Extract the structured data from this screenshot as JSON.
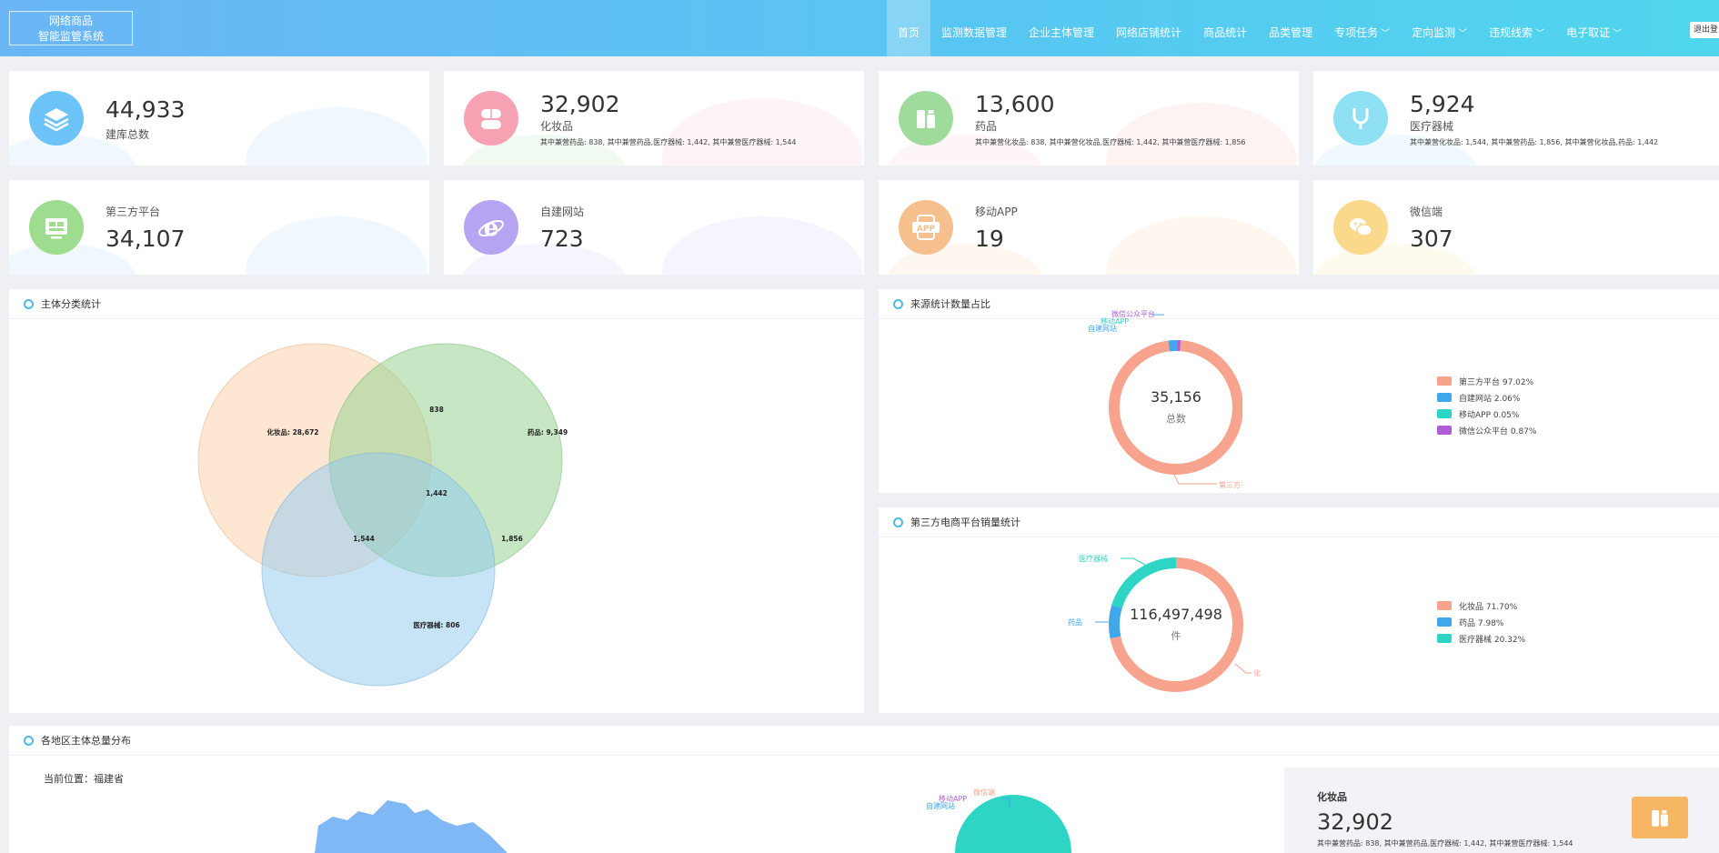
{
  "header": {
    "logo_line1": "网络商品",
    "logo_line2": "智能监管系统",
    "nav": [
      {
        "label": "首页",
        "active": true,
        "dropdown": false
      },
      {
        "label": "监测数据管理",
        "active": false,
        "dropdown": false
      },
      {
        "label": "企业主体管理",
        "active": false,
        "dropdown": false
      },
      {
        "label": "网络店铺统计",
        "active": false,
        "dropdown": false
      },
      {
        "label": "商品统计",
        "active": false,
        "dropdown": false
      },
      {
        "label": "品类管理",
        "active": false,
        "dropdown": false
      },
      {
        "label": "专项任务",
        "active": false,
        "dropdown": true
      },
      {
        "label": "定向监测",
        "active": false,
        "dropdown": true
      },
      {
        "label": "违规线索",
        "active": false,
        "dropdown": true
      },
      {
        "label": "电子取证",
        "active": false,
        "dropdown": true
      }
    ],
    "logout": "退出登"
  },
  "stats_row1": [
    {
      "value": "44,933",
      "label": "建库总数",
      "sub": "",
      "icon": "layers-icon",
      "color": "#6cc3f7"
    },
    {
      "value": "32,902",
      "label": "化妆品",
      "sub": "其中兼营药品: 838, 其中兼营药品,医疗器械: 1,442, 其中兼营医疗器械: 1,544",
      "icon": "pill-icon",
      "color": "#f6a2b3"
    },
    {
      "value": "13,600",
      "label": "药品",
      "sub": "其中兼营化妆品: 838, 其中兼营化妆品,医疗器械: 1,442, 其中兼营医疗器械: 1,856",
      "icon": "cosmetics-icon",
      "color": "#9fdc9c"
    },
    {
      "value": "5,924",
      "label": "医疗器械",
      "sub": "其中兼营化妆品: 1,544, 其中兼营药品: 1,856, 其中兼营化妆品,药品: 1,442",
      "icon": "stethoscope-icon",
      "color": "#8fe0f2"
    }
  ],
  "stats_row2": [
    {
      "label": "第三方平台",
      "value": "34,107",
      "icon": "monitor-icon",
      "color": "#9edc8f"
    },
    {
      "label": "自建网站",
      "value": "723",
      "icon": "ie-icon",
      "color": "#b6a4f3"
    },
    {
      "label": "移动APP",
      "value": "19",
      "icon": "app-icon",
      "color": "#f5c08e"
    },
    {
      "label": "微信端",
      "value": "307",
      "icon": "wechat-icon",
      "color": "#fbd98c"
    }
  ],
  "venn": {
    "title": "主体分类统计",
    "labels": {
      "cosmetics": "化妆品: 28,672",
      "drugs": "药品: 9,349",
      "devices": "医疗器械: 806",
      "cos_drug": "838",
      "cos_dev": "1,544",
      "drug_dev": "1,856",
      "all": "1,442"
    }
  },
  "source_chart": {
    "title": "来源统计数量占比",
    "center_value": "35,156",
    "center_label": "总数",
    "callouts": {
      "first": "第三方平台",
      "second": "自建网站",
      "third": "移动APP",
      "fourth": "微信公众平台"
    },
    "legend": [
      {
        "label": "第三方平台  97.02%",
        "color": "#f7a38e"
      },
      {
        "label": "自建网站  2.06%",
        "color": "#3ea8ea"
      },
      {
        "label": "移动APP  0.05%",
        "color": "#2ed5c4"
      },
      {
        "label": "微信公众平台  0.87%",
        "color": "#b05ed8"
      }
    ]
  },
  "sales_chart": {
    "title": "第三方电商平台销量统计",
    "center_value": "116,497,498",
    "center_label": "件",
    "callouts": {
      "devices": "医疗器械",
      "drugs": "药品",
      "cosmetics": "化妆品"
    },
    "legend": [
      {
        "label": "化妆品  71.70%",
        "color": "#f7a38e"
      },
      {
        "label": "药品  7.98%",
        "color": "#3ea8ea"
      },
      {
        "label": "医疗器械  20.32%",
        "color": "#2ed5c4"
      }
    ]
  },
  "chart_data": [
    {
      "type": "pie",
      "title": "来源统计数量占比",
      "categories": [
        "第三方平台",
        "自建网站",
        "移动APP",
        "微信公众平台"
      ],
      "values": [
        97.02,
        2.06,
        0.05,
        0.87
      ],
      "total": 35156
    },
    {
      "type": "pie",
      "title": "第三方电商平台销量统计",
      "categories": [
        "化妆品",
        "药品",
        "医疗器械"
      ],
      "values": [
        71.7,
        7.98,
        20.32
      ],
      "total": 116497498
    }
  ],
  "region": {
    "title": "各地区主体总量分布",
    "location": "当前位置：福建省",
    "callouts": {
      "wechat": "微信端",
      "app": "移动APP",
      "site": "自建网站"
    },
    "info_title": "化妆品",
    "info_value": "32,902",
    "info_sub": "其中兼营药品: 838, 其中兼营药品,医疗器械: 1,442, 其中兼营医疗器械: 1,544"
  }
}
